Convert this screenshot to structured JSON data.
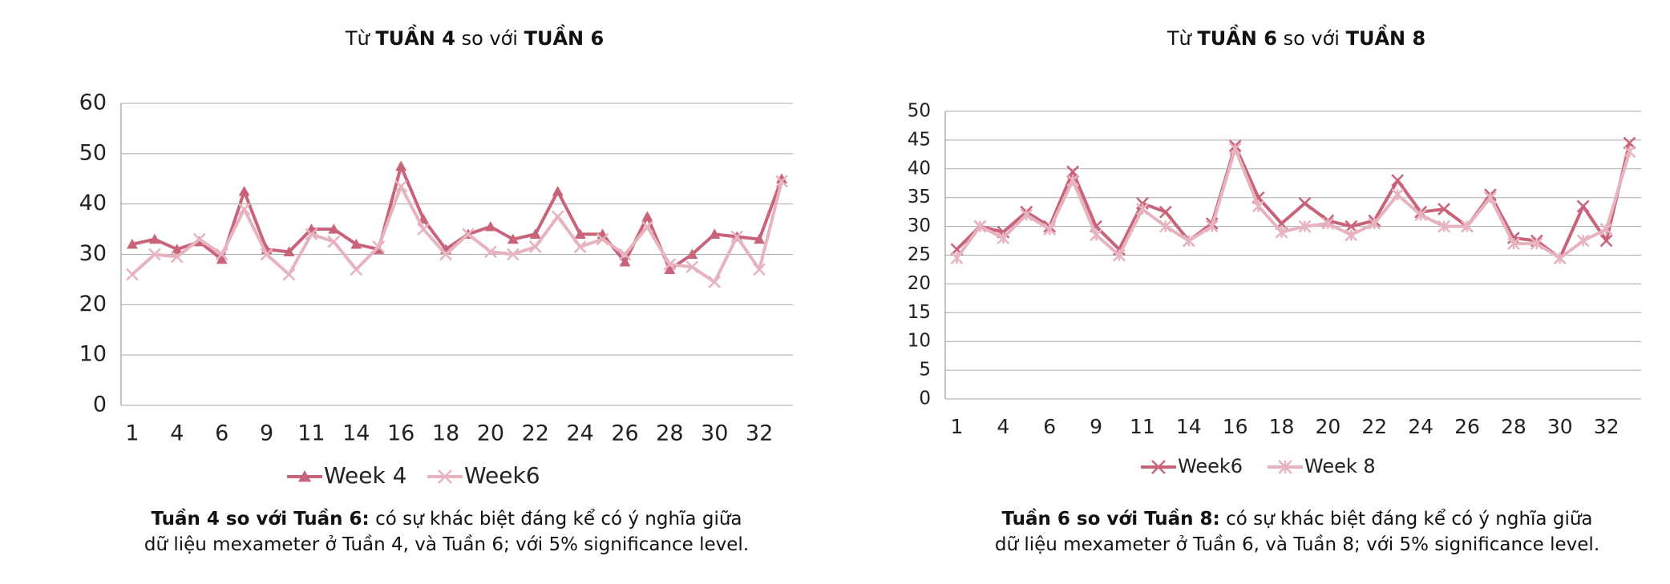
{
  "chart_data": [
    {
      "type": "line",
      "title": {
        "parts": [
          "Từ",
          "TUẦN 4",
          "so với",
          "TUẦN 6"
        ]
      },
      "categories": [
        "1",
        null,
        "4",
        null,
        "6",
        null,
        "9",
        null,
        "11",
        null,
        "14",
        null,
        "16",
        null,
        "18",
        null,
        "20",
        null,
        "22",
        null,
        "24",
        null,
        "26",
        null,
        "28",
        null,
        "30",
        null,
        "32",
        null
      ],
      "series": [
        {
          "name": "Week 4",
          "color": "#c9637a",
          "marker": "triangle",
          "values": [
            32,
            33,
            31,
            32.5,
            29,
            42.5,
            31,
            30.5,
            35,
            35,
            32,
            31,
            47.5,
            37,
            31,
            34,
            35.5,
            33,
            34,
            42.5,
            34,
            34,
            28.5,
            37.5,
            27,
            30,
            34,
            33.5,
            33,
            45
          ]
        },
        {
          "name": "Week6",
          "color": "#e6b3be",
          "marker": "x",
          "values": [
            26,
            30,
            29.5,
            33,
            30,
            39,
            30,
            26,
            34,
            32.5,
            27,
            31.5,
            43.5,
            35,
            30,
            34,
            30.5,
            30,
            31.5,
            37.5,
            31.5,
            33,
            30,
            35.5,
            28,
            27.5,
            24.5,
            33.5,
            27,
            44.5
          ]
        }
      ],
      "ylim": [
        0,
        60
      ],
      "yticks": [
        0,
        10,
        20,
        30,
        40,
        50,
        60
      ],
      "grid": true,
      "legend": "bottom",
      "caption": {
        "lead": "Tuần 4 so với Tuần 6:",
        "lines": [
          "có sự khác biệt đáng kể có ý nghĩa giữa",
          "dữ liệu mexameter ở Tuần 4, và Tuần 6; với 5% significance level."
        ]
      }
    },
    {
      "type": "line",
      "title": {
        "parts": [
          "Từ",
          "TUẦN 6",
          "so với",
          "TUẦN 8"
        ]
      },
      "categories": [
        "1",
        null,
        "4",
        null,
        "6",
        null,
        "9",
        null,
        "11",
        null,
        "14",
        null,
        "16",
        null,
        "18",
        null,
        "20",
        null,
        "22",
        null,
        "24",
        null,
        "26",
        null,
        "28",
        null,
        "30",
        null,
        "32",
        null
      ],
      "series": [
        {
          "name": "Week6",
          "color": "#c9637a",
          "marker": "x",
          "values": [
            26,
            30,
            29,
            32.5,
            30,
            39.5,
            30,
            26,
            34,
            32.5,
            27.5,
            30.5,
            44,
            35,
            30.5,
            34,
            31,
            30,
            31,
            38,
            32.5,
            33,
            30,
            35.5,
            28,
            27.5,
            24.5,
            33.5,
            27.5,
            44.5
          ]
        },
        {
          "name": "Week 8",
          "color": "#e6b3be",
          "marker": "star",
          "values": [
            24.5,
            30,
            28,
            32,
            29.5,
            38,
            28.5,
            25,
            33,
            30,
            27.5,
            30,
            43.5,
            33.5,
            29,
            30,
            30.5,
            28.5,
            30.5,
            35.5,
            32,
            30,
            30,
            35,
            27,
            27,
            24.5,
            27.5,
            29.5,
            43
          ]
        }
      ],
      "ylim": [
        0,
        50
      ],
      "yticks": [
        0,
        5,
        10,
        15,
        20,
        25,
        30,
        35,
        40,
        45,
        50
      ],
      "grid": true,
      "legend": "bottom",
      "caption": {
        "lead": "Tuần 6 so với Tuần 8:",
        "lines": [
          "có sự khác biệt đáng kể có ý nghĩa giữa",
          "dữ liệu mexameter ở Tuần 6, và Tuần 8; với 5% significance level."
        ]
      }
    }
  ]
}
